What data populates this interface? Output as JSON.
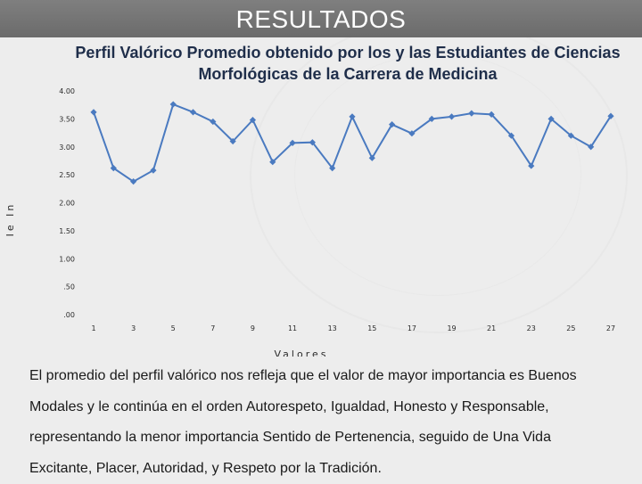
{
  "page": {
    "title": "RESULTADOS"
  },
  "chart_data": {
    "type": "line",
    "title": "Perfil Valórico Promedio obtenido por los y las Estudiantes de Ciencias Morfológicas de la Carrera de Medicina",
    "xlabel": "Valores",
    "ylabel": "Ie In",
    "x_ticks": [
      "1",
      "3",
      "5",
      "7",
      "9",
      "11",
      "13",
      "15",
      "17",
      "19",
      "21",
      "23",
      "25",
      "27"
    ],
    "y_ticks": [
      "4.00",
      "3.50",
      "3.00",
      "2.50",
      "2.00",
      "1.50",
      "1.00",
      ".50",
      ".00"
    ],
    "ylim": [
      0,
      4
    ],
    "series": [
      {
        "color": "#4a7ac0",
        "x": [
          1,
          2,
          3,
          4,
          5,
          6,
          7,
          8,
          9,
          10,
          11,
          12,
          13,
          14,
          15,
          16,
          17,
          18,
          19,
          20,
          21,
          22,
          23,
          24,
          25,
          26,
          27
        ],
        "values": [
          3.62,
          2.62,
          2.38,
          2.58,
          3.76,
          3.62,
          3.45,
          3.1,
          3.48,
          2.73,
          3.07,
          3.08,
          2.62,
          3.54,
          2.8,
          3.4,
          3.24,
          3.5,
          3.54,
          3.6,
          3.58,
          3.2,
          2.66,
          3.5,
          3.2,
          3.0,
          3.55
        ]
      }
    ],
    "grid": false,
    "legend": "none"
  },
  "summary": {
    "lines": [
      "El promedio del perfil valórico nos refleja que el valor de mayor importancia es Buenos",
      "Modales y le continúa en el orden Autorespeto, Igualdad, Honesto y Responsable,",
      "representando la menor importancia Sentido de Pertenencia, seguido de Una Vida",
      "Excitante, Placer, Autoridad, y Respeto por la Tradición."
    ]
  }
}
